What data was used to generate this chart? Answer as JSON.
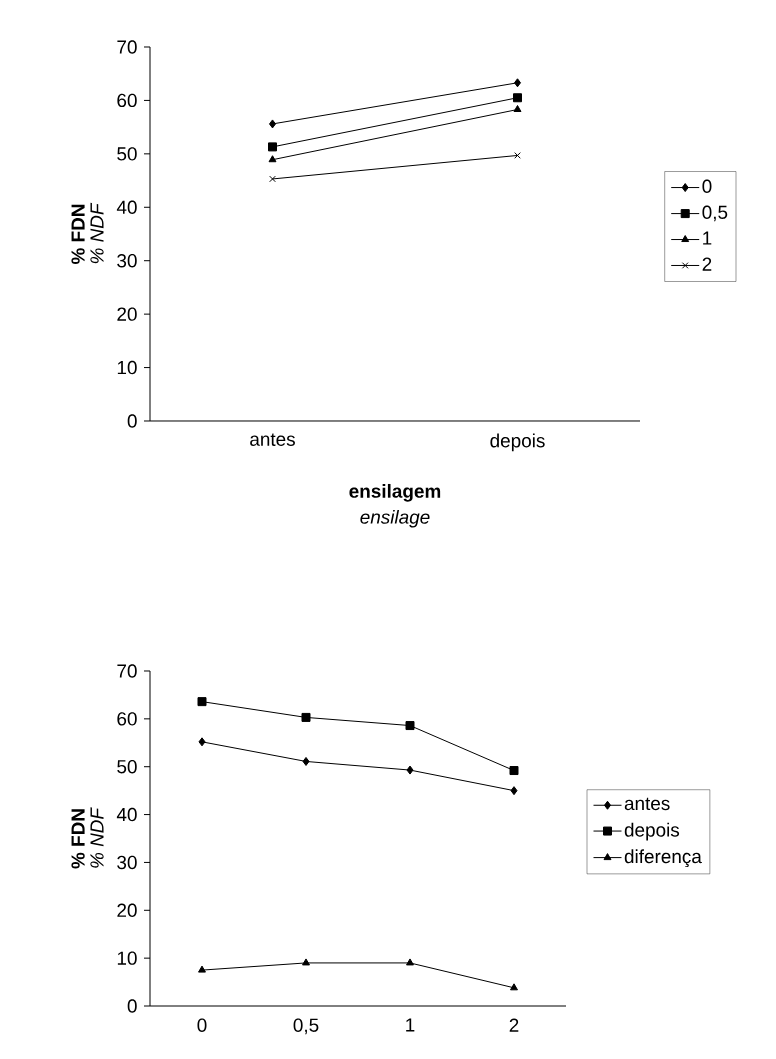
{
  "chart_data": [
    {
      "type": "line",
      "categories": [
        "antes",
        "depois"
      ],
      "xlabel": "ensilagem",
      "ylabel": "% FDN",
      "annotations": [
        "% NDF",
        "ensilage"
      ],
      "ylim": [
        0,
        70
      ],
      "yticks": [
        0,
        10,
        20,
        30,
        40,
        50,
        60,
        70
      ],
      "legend": "right",
      "grid": false,
      "series": [
        {
          "name": "0",
          "color": "#000000",
          "marker": "diamond",
          "values": [
            55.6,
            63.3
          ]
        },
        {
          "name": "0,5",
          "color": "#000000",
          "marker": "square",
          "values": [
            51.3,
            60.5
          ]
        },
        {
          "name": "1",
          "color": "#000000",
          "marker": "triangle",
          "values": [
            48.9,
            58.3
          ]
        },
        {
          "name": "2",
          "color": "#000000",
          "marker": "cross",
          "values": [
            45.3,
            49.7
          ]
        }
      ]
    },
    {
      "type": "line",
      "categories": [
        "0",
        "0,5",
        "1",
        "2"
      ],
      "ylabel": "% FDN",
      "annotations": [
        "% NDF"
      ],
      "ylim": [
        0,
        70
      ],
      "yticks": [
        0,
        10,
        20,
        30,
        40,
        50,
        60,
        70
      ],
      "legend": "right",
      "grid": false,
      "series": [
        {
          "name": "antes",
          "color": "#000000",
          "marker": "diamond",
          "values": [
            55.2,
            51.1,
            49.3,
            45.0
          ]
        },
        {
          "name": "depois",
          "color": "#000000",
          "marker": "square",
          "values": [
            63.6,
            60.3,
            58.6,
            49.2
          ]
        },
        {
          "name": "diferença",
          "color": "#000000",
          "marker": "triangle",
          "values": [
            7.5,
            9.0,
            9.0,
            3.8
          ]
        }
      ]
    }
  ]
}
